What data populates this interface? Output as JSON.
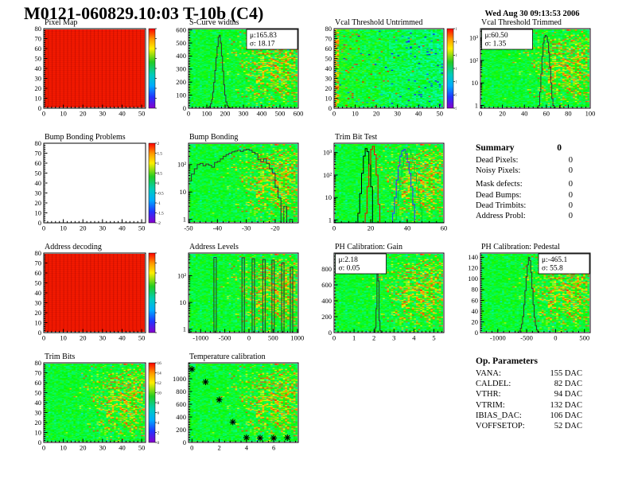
{
  "header": {
    "title": "M0121-060829.10:03 T-10b (C4)",
    "date": "Wed Aug 30 09:13:53 2006"
  },
  "summary": {
    "title": "Summary",
    "value": "0",
    "rows": [
      {
        "label": "Dead Pixels:",
        "value": "0",
        "gap": false
      },
      {
        "label": "Noisy Pixels:",
        "value": "0",
        "gap": false
      },
      {
        "label": "Mask defects:",
        "value": "0",
        "gap": true
      },
      {
        "label": "Dead Bumps:",
        "value": "0",
        "gap": false
      },
      {
        "label": "Dead Trimbits:",
        "value": "0",
        "gap": false
      },
      {
        "label": "Address Probl:",
        "value": "0",
        "gap": false
      }
    ]
  },
  "op_parameters": {
    "title": "Op. Parameters",
    "rows": [
      {
        "label": "VANA:",
        "value": "155 DAC"
      },
      {
        "label": "CALDEL:",
        "value": "82 DAC"
      },
      {
        "label": "VTHR:",
        "value": "94 DAC"
      },
      {
        "label": "VTRIM:",
        "value": "132 DAC"
      },
      {
        "label": "IBIAS_DAC:",
        "value": "106 DAC"
      },
      {
        "label": "VOFFSETOP:",
        "value": "52 DAC"
      }
    ]
  },
  "colors": {
    "histogram_line": "#333333",
    "trimbit_series": [
      "#000000",
      "#ee0000",
      "#3333ff",
      "#00cc33"
    ],
    "map_red": "#f51a00"
  },
  "chart_data": [
    {
      "id": "pixel_map",
      "type": "heatmap",
      "title": "Pixel Map",
      "heat_style": "solid-red",
      "xlim": [
        0,
        52
      ],
      "ylim": [
        0,
        80
      ],
      "xticks": [
        0,
        10,
        20,
        30,
        40,
        50
      ],
      "yticks": [
        0,
        10,
        20,
        30,
        40,
        50,
        60,
        70,
        80
      ],
      "colorbar": {
        "labels": []
      }
    },
    {
      "id": "scurve_widths",
      "type": "histogram",
      "title": "S-Curve widths",
      "xlim": [
        0,
        600
      ],
      "ylim": [
        0,
        610
      ],
      "xticks": [
        0,
        100,
        200,
        300,
        400,
        500,
        600
      ],
      "yticks": [
        0,
        100,
        200,
        300,
        400,
        500,
        600
      ],
      "stats": {
        "pos": "tr",
        "lines": [
          "μ:165.83",
          "σ: 18.17"
        ]
      },
      "bins": {
        "start": 96,
        "width": 6,
        "counts": [
          1,
          2,
          6,
          15,
          34,
          67,
          123,
          198,
          290,
          388,
          473,
          545,
          560,
          500,
          400,
          285,
          180,
          100,
          48,
          20,
          8,
          3,
          1
        ]
      }
    },
    {
      "id": "vcal_untrimmed",
      "type": "heatmap",
      "title": "Vcal Threshold Untrimmed",
      "heat_style": "noisy-green",
      "xlim": [
        0,
        52
      ],
      "ylim": [
        0,
        80
      ],
      "xticks": [
        0,
        10,
        20,
        30,
        40,
        50
      ],
      "yticks": [
        0,
        10,
        20,
        30,
        40,
        50,
        60,
        70,
        80
      ],
      "colorbar": {
        "labels": [
          "120",
          "115",
          "110",
          "105",
          "100",
          "95",
          "90"
        ]
      }
    },
    {
      "id": "vcal_trimmed",
      "type": "histogram",
      "title": "Vcal Threshold Trimmed",
      "ylog": true,
      "xlim": [
        0,
        100
      ],
      "ylim": [
        0.75,
        2600
      ],
      "xticks": [
        0,
        20,
        40,
        60,
        80,
        100
      ],
      "yticks": [
        1,
        10,
        100,
        1000
      ],
      "ytick_labels": [
        "1",
        "10",
        "10²",
        "10³"
      ],
      "stats": {
        "pos": "tl",
        "lines": [
          "μ:60.50",
          "σ: 1.35"
        ]
      },
      "bins": {
        "start": 53,
        "width": 1,
        "counts": [
          1,
          4,
          25,
          150,
          600,
          1100,
          1300,
          1150,
          650,
          220,
          50,
          10,
          2,
          1,
          0,
          0,
          0,
          0,
          0,
          1
        ]
      }
    },
    {
      "id": "bump_problems",
      "type": "heatmap",
      "title": "Bump Bonding Problems",
      "heat_style": "white",
      "xlim": [
        0,
        52
      ],
      "ylim": [
        0,
        80
      ],
      "xticks": [
        0,
        10,
        20,
        30,
        40,
        50
      ],
      "yticks": [
        0,
        10,
        20,
        30,
        40,
        50,
        60,
        70,
        80
      ],
      "colorbar": {
        "labels": [
          "2",
          "1.5",
          "1",
          "0.5",
          "0",
          "-0.5",
          "-1",
          "-1.5",
          "-2"
        ]
      }
    },
    {
      "id": "bump_bonding",
      "type": "histogram",
      "title": "Bump Bonding",
      "ylog": true,
      "xlim": [
        -50,
        -12
      ],
      "ylim": [
        0.75,
        600
      ],
      "xticks": [
        -50,
        -40,
        -30,
        -20
      ],
      "yticks": [
        1,
        10,
        100
      ],
      "ytick_labels": [
        "1",
        "10",
        "10²"
      ],
      "bins": {
        "start": -50,
        "width": 1,
        "counts": [
          25,
          45,
          70,
          100,
          110,
          90,
          105,
          95,
          80,
          120,
          130,
          160,
          200,
          230,
          260,
          290,
          310,
          330,
          300,
          340,
          360,
          330,
          280,
          250,
          150,
          130,
          160,
          110,
          70,
          50,
          15,
          6,
          0,
          3,
          0,
          1
        ]
      }
    },
    {
      "id": "trim_bit_test",
      "type": "multi-histogram",
      "title": "Trim Bit Test",
      "ylog": true,
      "xlim": [
        0,
        60
      ],
      "ylim": [
        0.75,
        2600
      ],
      "xticks": [
        0,
        20,
        40,
        60
      ],
      "yticks": [
        1,
        10,
        100,
        1000
      ],
      "ytick_labels": [
        "1",
        "10",
        "10²",
        "10³"
      ],
      "baseline_color": "#00cc33",
      "series": [
        {
          "name": "trimbit-15",
          "color": "#000000",
          "bins": {
            "start": 13,
            "width": 1,
            "counts": [
              2,
              15,
              120,
              700,
              1500,
              1100,
              300,
              30
            ]
          }
        },
        {
          "name": "trimbit-14",
          "color": "#ee0000",
          "bins": {
            "start": 17,
            "width": 1,
            "counts": [
              2,
              30,
              300,
              1400,
              1900,
              800,
              100,
              5
            ]
          }
        },
        {
          "name": "trimbit-13",
          "color": "#3333ff",
          "bins": {
            "start": 32,
            "width": 1,
            "counts": [
              2,
              10,
              60,
              250,
              700,
              1200,
              1400,
              900,
              400,
              120,
              30,
              5
            ]
          }
        },
        {
          "name": "trimbit-11",
          "color": "#00cc33",
          "bins": {
            "start": 33,
            "width": 1,
            "counts": [
              1,
              5,
              20,
              80,
              250,
              600,
              1100,
              1500,
              1300,
              800,
              350,
              120,
              40,
              10,
              3
            ]
          }
        }
      ]
    },
    {
      "id": "address_decoding",
      "type": "heatmap",
      "title": "Address decoding",
      "heat_style": "solid-red",
      "xlim": [
        0,
        52
      ],
      "ylim": [
        0,
        80
      ],
      "xticks": [
        0,
        10,
        20,
        30,
        40,
        50
      ],
      "yticks": [
        0,
        10,
        20,
        30,
        40,
        50,
        60,
        70,
        80
      ],
      "colorbar": {
        "labels": []
      }
    },
    {
      "id": "address_levels",
      "type": "spikes",
      "title": "Address Levels",
      "ylog": true,
      "xlim": [
        -1250,
        1020
      ],
      "ylim": [
        0.75,
        700
      ],
      "xticks": [
        -1000,
        -500,
        0,
        500,
        1000
      ],
      "yticks": [
        1,
        10,
        100
      ],
      "ytick_labels": [
        "1",
        "10",
        "10²"
      ],
      "spikes": [
        [
          -700,
          480
        ],
        [
          -120,
          470
        ],
        [
          90,
          430
        ],
        [
          310,
          400
        ],
        [
          500,
          380
        ],
        [
          700,
          300
        ],
        [
          880,
          210
        ]
      ]
    },
    {
      "id": "ph_gain",
      "type": "histogram",
      "title": "PH Calibration: Gain",
      "xlim": [
        0,
        5.5
      ],
      "ylim": [
        0,
        1000
      ],
      "xticks": [
        0,
        1,
        2,
        3,
        4,
        5
      ],
      "yticks": [
        0,
        200,
        400,
        600,
        800
      ],
      "stats": {
        "pos": "tl",
        "lines": [
          "μ:2.18",
          "σ: 0.05"
        ]
      },
      "bins": {
        "start": 2.0,
        "width": 0.05,
        "counts": [
          10,
          60,
          300,
          950,
          650,
          150,
          25,
          5
        ]
      }
    },
    {
      "id": "ph_pedestal",
      "type": "histogram",
      "title": "PH Calibration: Pedestal",
      "xlim": [
        -1300,
        600
      ],
      "ylim": [
        0,
        148
      ],
      "xticks": [
        -1000,
        -500,
        0,
        500
      ],
      "yticks": [
        0,
        20,
        40,
        60,
        80,
        100,
        120,
        140
      ],
      "stats": {
        "pos": "tr",
        "lines": [
          "μ:-465.1",
          "σ: 55.8"
        ]
      },
      "bins": {
        "start": -650,
        "width": 20,
        "counts": [
          1,
          3,
          8,
          16,
          30,
          52,
          78,
          104,
          126,
          140,
          134,
          112,
          82,
          52,
          28,
          13,
          5,
          2
        ]
      }
    },
    {
      "id": "trim_bits",
      "type": "heatmap",
      "title": "Trim Bits",
      "heat_style": "noisy-trim",
      "xlim": [
        0,
        52
      ],
      "ylim": [
        0,
        80
      ],
      "xticks": [
        0,
        10,
        20,
        30,
        40,
        50
      ],
      "yticks": [
        0,
        10,
        20,
        30,
        40,
        50,
        60,
        70,
        80
      ],
      "colorbar": {
        "labels": [
          "16",
          "14",
          "12",
          "10",
          "8",
          "6",
          "4",
          "2",
          "0"
        ]
      }
    },
    {
      "id": "temp_cal",
      "type": "scatter",
      "title": "Temperature calibration",
      "xlim": [
        -0.25,
        7.8
      ],
      "ylim": [
        0,
        1250
      ],
      "xticks": [
        0,
        2,
        4,
        6
      ],
      "yticks": [
        0,
        200,
        400,
        600,
        800,
        1000
      ],
      "points": [
        [
          0,
          1150
        ],
        [
          1,
          950
        ],
        [
          2,
          670
        ],
        [
          3,
          320
        ],
        [
          4,
          75
        ],
        [
          5,
          70
        ],
        [
          6,
          70
        ],
        [
          7,
          75
        ]
      ]
    }
  ]
}
